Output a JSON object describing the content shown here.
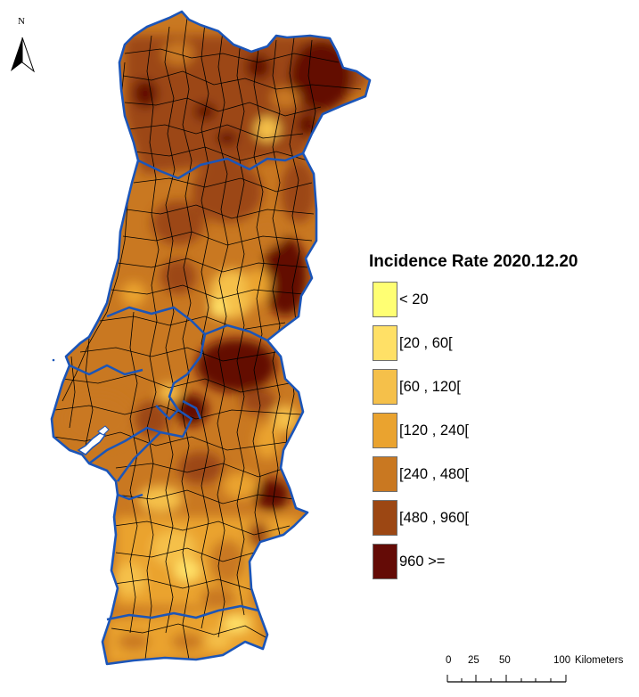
{
  "north_arrow": {
    "label": "N",
    "icon": "north-arrow-icon"
  },
  "legend": {
    "title": "Incidence Rate 2020.12.20",
    "classes": [
      {
        "label": "< 20",
        "color": "#ffff73"
      },
      {
        "label": "[20 , 60[",
        "color": "#ffe066"
      },
      {
        "label": "[60 , 120[",
        "color": "#f5c04a"
      },
      {
        "label": "[120 , 240[",
        "color": "#eaa32f"
      },
      {
        "label": "[240 , 480[",
        "color": "#c97821"
      },
      {
        "label": "[480 , 960[",
        "color": "#9c4713"
      },
      {
        "label": "960 >=",
        "color": "#640b06"
      }
    ]
  },
  "scale_bar": {
    "ticks": [
      "0",
      "25",
      "50",
      "100"
    ],
    "unit": "Kilometers"
  },
  "colors": {
    "region_boundary": "#1b55b8",
    "municipality_boundary": "#000000"
  }
}
